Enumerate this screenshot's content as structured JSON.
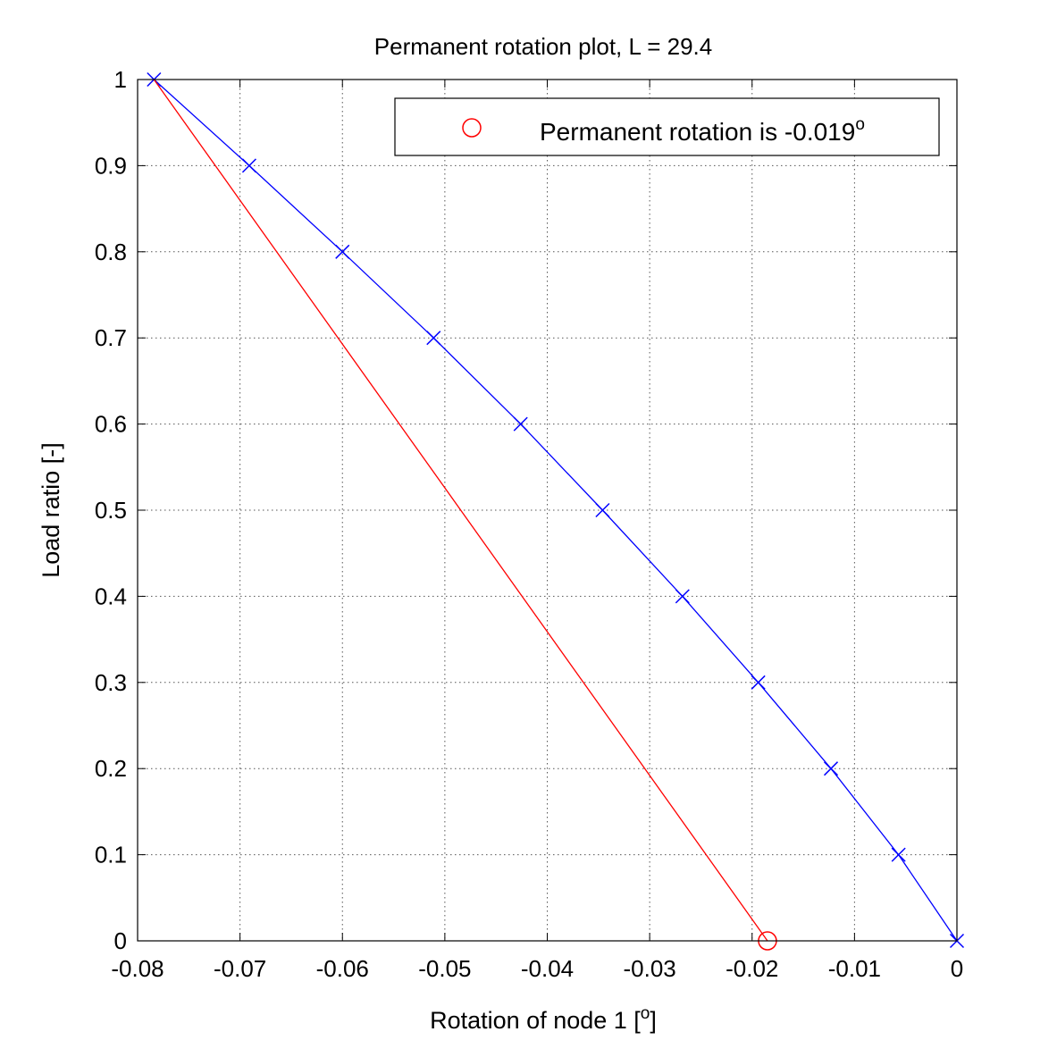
{
  "chart_data": {
    "type": "line",
    "title": "Permanent rotation plot, L = 29.4",
    "xlabel_prefix": "Rotation of node 1 [",
    "xlabel_sup": "o",
    "xlabel_suffix": "]",
    "ylabel": "Load ratio [-]",
    "xlim": [
      -0.08,
      0
    ],
    "ylim": [
      0,
      1
    ],
    "xticks": [
      -0.08,
      -0.07,
      -0.06,
      -0.05,
      -0.04,
      -0.03,
      -0.02,
      -0.01,
      0
    ],
    "xtick_labels": [
      "-0.08",
      "-0.07",
      "-0.06",
      "-0.05",
      "-0.04",
      "-0.03",
      "-0.02",
      "-0.01",
      "0"
    ],
    "yticks": [
      0,
      0.1,
      0.2,
      0.3,
      0.4,
      0.5,
      0.6,
      0.7,
      0.8,
      0.9,
      1
    ],
    "ytick_labels": [
      "0",
      "0.1",
      "0.2",
      "0.3",
      "0.4",
      "0.5",
      "0.6",
      "0.7",
      "0.8",
      "0.9",
      "1"
    ],
    "grid": true,
    "legend_position": "top-right",
    "legend": {
      "text": "Permanent rotation is -0.019",
      "sup": "o"
    },
    "series": [
      {
        "color": "#0000ff",
        "marker": "x",
        "x": [
          0,
          -0.0057,
          -0.0123,
          -0.0194,
          -0.0268,
          -0.0346,
          -0.0426,
          -0.0511,
          -0.06,
          -0.0691,
          -0.0784
        ],
        "y": [
          0,
          0.1,
          0.2,
          0.3,
          0.4,
          0.5,
          0.6,
          0.7,
          0.8,
          0.9,
          1.0
        ]
      },
      {
        "color": "#ff0000",
        "marker": "none",
        "x": [
          -0.0784,
          -0.0185
        ],
        "y": [
          1.0,
          0
        ]
      },
      {
        "color": "#ff0000",
        "marker": "o",
        "x": [
          -0.0185
        ],
        "y": [
          0
        ]
      }
    ]
  }
}
